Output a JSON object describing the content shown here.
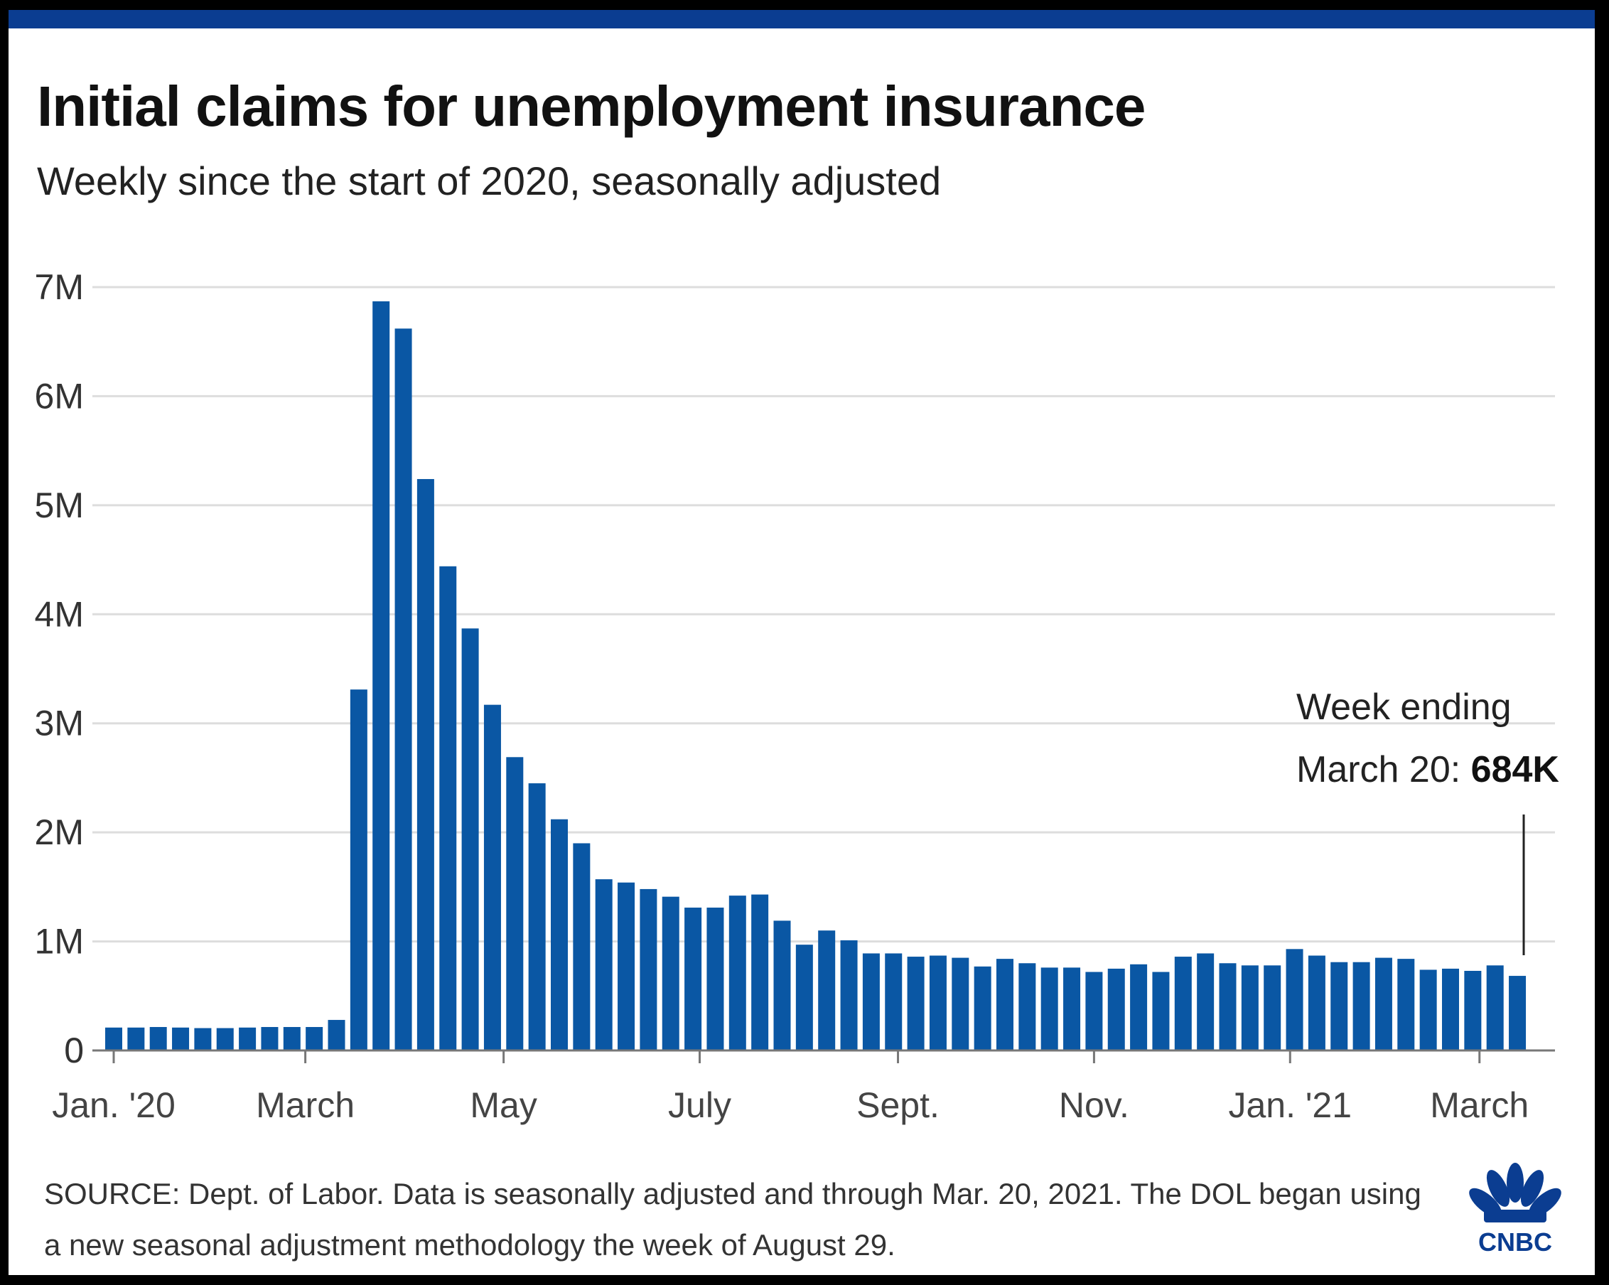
{
  "title": "Initial claims for unemployment insurance",
  "subtitle": "Weekly since the start of 2020, seasonally adjusted",
  "source": "SOURCE: Dept. of Labor. Data is seasonally adjusted and through Mar. 20, 2021. The DOL began using a new seasonal adjustment methodology the week of August 29.",
  "logo_text": "CNBC",
  "colors": {
    "bar": "#0a57a4",
    "grid": "#dddddd",
    "axis": "#777777",
    "brand_top": "#0b3d91"
  },
  "chart_data": {
    "type": "bar",
    "title": "Initial claims for unemployment insurance",
    "subtitle": "Weekly since the start of 2020, seasonally adjusted",
    "xlabel": "",
    "ylabel": "",
    "ylim": [
      0,
      7000000
    ],
    "yticks": [
      0,
      1000000,
      2000000,
      3000000,
      4000000,
      5000000,
      6000000,
      7000000
    ],
    "ytick_labels": [
      "0",
      "1M",
      "2M",
      "3M",
      "4M",
      "5M",
      "6M",
      "7M"
    ],
    "xtick_labels": [
      {
        "label": "Jan. '20",
        "week_index": 0
      },
      {
        "label": "March",
        "week_index": 8.6
      },
      {
        "label": "May",
        "week_index": 17.5
      },
      {
        "label": "July",
        "week_index": 26.3
      },
      {
        "label": "Sept.",
        "week_index": 35.2
      },
      {
        "label": "Nov.",
        "week_index": 44
      },
      {
        "label": "Jan. '21",
        "week_index": 52.8
      },
      {
        "label": "March",
        "week_index": 61.3
      }
    ],
    "grid": true,
    "annotation": {
      "line1": "Week ending",
      "line2_prefix": "March 20: ",
      "line2_value": "684K",
      "target_index": 63
    },
    "values": [
      210000,
      210000,
      215000,
      210000,
      205000,
      205000,
      210000,
      215000,
      215000,
      215000,
      280000,
      3310000,
      6870000,
      6620000,
      5240000,
      4440000,
      3870000,
      3170000,
      2690000,
      2450000,
      2120000,
      1900000,
      1570000,
      1540000,
      1480000,
      1410000,
      1310000,
      1310000,
      1420000,
      1430000,
      1190000,
      970000,
      1100000,
      1010000,
      890000,
      890000,
      860000,
      870000,
      850000,
      770000,
      840000,
      800000,
      760000,
      760000,
      720000,
      750000,
      790000,
      720000,
      860000,
      890000,
      800000,
      780000,
      780000,
      930000,
      870000,
      810000,
      810000,
      850000,
      840000,
      740000,
      750000,
      730000,
      780000,
      684000
    ]
  }
}
